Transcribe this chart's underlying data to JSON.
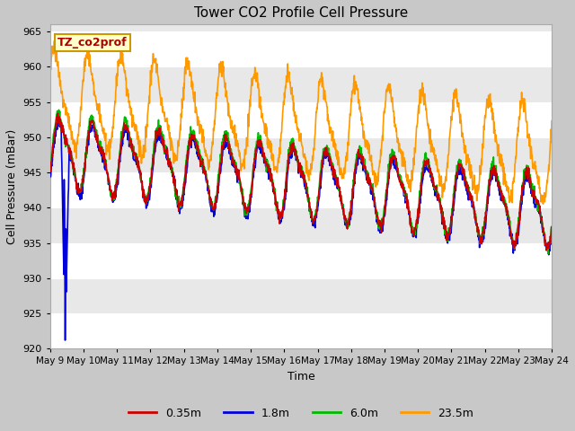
{
  "title": "Tower CO2 Profile Cell Pressure",
  "xlabel": "Time",
  "ylabel": "Cell Pressure (mBar)",
  "ylim": [
    920,
    966
  ],
  "yticks": [
    920,
    925,
    930,
    935,
    940,
    945,
    950,
    955,
    960,
    965
  ],
  "colors": {
    "0.35m": "#cc0000",
    "1.8m": "#0000dd",
    "6.0m": "#00bb00",
    "23.5m": "#ff9900"
  },
  "legend_labels": [
    "0.35m",
    "1.8m",
    "6.0m",
    "23.5m"
  ],
  "annotation_text": "TZ_co2prof",
  "annotation_color": "#aa0000",
  "annotation_bg": "#ffffcc",
  "annotation_border": "#cc9900",
  "fig_bg": "#c8c8c8",
  "plot_bg": "#e8e8e8",
  "band_color": "#ffffff",
  "linewidth": 1.2,
  "figsize": [
    6.4,
    4.8
  ],
  "dpi": 100
}
